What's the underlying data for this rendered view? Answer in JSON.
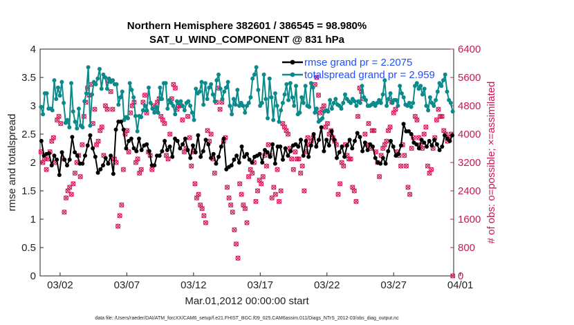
{
  "chart_data": {
    "type": "line",
    "title_line1": "Northern Hemisphere 382601 / 386545 = 98.980%",
    "title_line2": "SAT_U_WIND_COMPONENT @ 831 hPa",
    "xlabel": "Mar.01,2012 00:00:00 start",
    "ylabel_left": "rmse and totalspread",
    "ylabel_right": "# of obs: o=possible; ×=assimilated",
    "footnote": "data file: /Users/raeder/DAI/ATM_forcXX/CAM6_setup/f.e21.FHIST_BGC.f09_025.CAM6assim.011/Diags_NTrS_2012-03/obs_diag_output.nc",
    "ylim_left": [
      0,
      4
    ],
    "ylim_right": [
      0,
      6400
    ],
    "yticks_left": [
      "0",
      "0.5",
      "1",
      "1.5",
      "2",
      "2.5",
      "3",
      "3.5",
      "4"
    ],
    "yticks_right": [
      "0",
      "800",
      "1600",
      "2400",
      "3200",
      "4000",
      "4800",
      "5600",
      "6400"
    ],
    "xticks": [
      "03/02",
      "03/07",
      "03/12",
      "03/17",
      "03/22",
      "03/27",
      "04/01"
    ],
    "xlim_days": [
      0.5,
      31.5
    ],
    "colors": {
      "rmse": "#000000",
      "spread": "#0a8a8a",
      "obs": "#d6175a",
      "legend_text": "#1f4fff",
      "right_axis": "#c8194f"
    },
    "series": [
      {
        "name": "rmse grand pr = 2.2075",
        "values": [
          2.38,
          2.12,
          2.15,
          2.16,
          1.95,
          2.12,
          2.05,
          1.78,
          2.18,
          2.05,
          1.95,
          2.05,
          2.45,
          2.18,
          2.12,
          1.98,
          1.98,
          2.12,
          2.3,
          2.48,
          2.25,
          2.1,
          1.82,
          1.88,
          1.95,
          2.08,
          1.98,
          2.12,
          1.8,
          2.58,
          2.72,
          2.72,
          2.58,
          2.25,
          2.38,
          2.42,
          2.25,
          2.2,
          2.42,
          2.22,
          2.3,
          2.32,
          2.2,
          1.95,
          1.95,
          2.12,
          2.12,
          2.2,
          2.38,
          2.22,
          2.28,
          2.1,
          2.42,
          2.38,
          2.25,
          2.32,
          2.42,
          2.22,
          2.08,
          2.3,
          2.18,
          2.48,
          2.1,
          2.2,
          2.4,
          2.32,
          2.08,
          2.15,
          1.98,
          2.1,
          2.28,
          2.42,
          1.88,
          1.92,
          1.95,
          2.05,
          2.12,
          2.0,
          2.28,
          2.1,
          2.15,
          2.05,
          2.0,
          2.1,
          2.12,
          2.15,
          2.0,
          2.22,
          2.18,
          2.1,
          2.32,
          1.98,
          2.28,
          2.28,
          2.05,
          2.25,
          2.12,
          2.2,
          2.3,
          2.32,
          2.28,
          2.4,
          2.12,
          2.38,
          2.1,
          2.3,
          2.5,
          2.28,
          2.4,
          2.62,
          2.2,
          2.4,
          2.3,
          2.55,
          2.4,
          2.08,
          2.18,
          2.28,
          2.1,
          2.3,
          2.4,
          2.25,
          2.38,
          2.52,
          2.45,
          2.2,
          2.35,
          2.22,
          2.32,
          2.28,
          2.08,
          2.0,
          1.98,
          2.08,
          1.98,
          2.2,
          2.38,
          2.28,
          2.12,
          2.15,
          2.3,
          2.68,
          2.55,
          2.55,
          2.5,
          2.35,
          2.32,
          2.25,
          2.4,
          2.35,
          2.28,
          2.38,
          2.3,
          2.4,
          2.32,
          2.22,
          2.28,
          2.48,
          2.42,
          2.38,
          2.48
        ]
      },
      {
        "name": "totalspread grand pr = 2.959",
        "values": [
          2.98,
          2.85,
          3.22,
          3.22,
          2.95,
          2.95,
          2.92,
          3.45,
          3.12,
          3.32,
          3.18,
          3.42,
          3.05,
          2.7,
          2.75,
          2.62,
          3.4,
          2.9,
          2.72,
          2.6,
          2.95,
          2.65,
          2.62,
          3.08,
          3.22,
          3.68,
          2.65,
          3.2,
          3.42,
          3.38,
          3.48,
          3.65,
          3.3,
          3.55,
          3.5,
          3.3,
          3.48,
          3.42,
          3.45,
          3.38,
          3.38,
          3.02,
          3.15,
          3.25,
          2.75,
          2.8,
          2.78,
          3.4,
          3.28,
          3.15,
          2.82,
          2.55,
          2.82,
          2.8,
          2.92,
          3.0,
          2.92,
          3.32,
          3.05,
          2.95,
          2.88,
          2.98,
          2.88,
          3.32,
          3.12,
          3.4,
          3.4,
          2.95,
          3.1,
          3.05,
          3.0,
          2.85,
          3.08,
          3.05,
          3.08,
          3.0,
          2.92,
          3.05,
          3.08,
          3.0,
          2.88,
          2.75,
          3.3,
          3.22,
          3.25,
          3.42,
          3.02,
          3.4,
          3.12,
          3.32,
          3.38,
          3.2,
          3.08,
          3.45,
          3.55,
          3.3,
          3.12,
          3.25,
          3.32,
          3.42,
          3.0,
          2.85,
          3.12,
          3.02,
          3.28,
          3.0,
          3.05,
          3.0,
          2.88,
          3.0,
          3.05,
          3.15,
          3.48,
          3.55,
          3.68,
          3.28,
          3.0,
          3.05,
          3.55,
          3.12,
          2.78,
          3.48,
          3.15,
          2.75,
          3.22,
          3.0,
          2.72,
          2.92,
          3.05,
          3.2,
          3.38,
          3.1,
          3.4,
          3.15,
          3.0,
          3.35,
          2.85,
          2.88,
          3.15,
          3.05,
          3.35,
          3.0,
          2.98,
          3.4,
          3.32,
          2.88,
          2.95,
          2.72,
          2.75,
          2.78,
          2.9,
          2.92,
          2.9,
          3.1,
          2.95,
          3.05,
          3.12,
          3.02,
          3.0,
          2.95,
          3.05,
          3.2,
          3.12,
          3.08,
          3.05,
          3.12,
          3.08,
          3.0,
          3.08,
          3.05,
          3.35,
          3.15,
          3.1,
          3.0,
          3.0,
          3.02,
          3.05,
          3.0,
          3.05,
          3.1,
          3.05,
          3.2,
          3.45,
          3.0,
          3.12,
          3.22,
          3.05,
          3.1,
          3.1,
          3.0,
          3.35,
          3.22,
          3.15,
          3.02,
          3.0,
          3.05,
          2.98,
          3.05,
          3.35,
          3.4,
          3.3,
          3.35,
          3.2,
          3.3,
          3.0,
          2.92,
          3.15,
          3.05,
          3.0,
          3.1,
          3.25,
          3.4,
          3.35,
          3.45,
          3.55,
          3.25,
          3.1,
          3.05,
          2.9
        ]
      }
    ],
    "obs_counts": {
      "name": "# of obs",
      "possible": [
        3500,
        3200,
        3300,
        3000,
        3300,
        3500,
        3800,
        3900,
        3200,
        4400,
        4500,
        4300,
        3300,
        1800,
        2200,
        2400,
        2500,
        2300,
        2600,
        2900,
        3200,
        3400,
        2800,
        3700,
        4500,
        4900,
        5300,
        5100,
        5400,
        4300,
        4700,
        3700,
        3800,
        4100,
        4200,
        3400,
        4800,
        4700,
        5500,
        5200,
        4700,
        3300,
        3200,
        1400,
        1700,
        2000,
        3000,
        4000,
        4100,
        3500,
        4600,
        4800,
        4900,
        3200,
        3300,
        2900,
        3000,
        4900,
        5100,
        4600,
        3500,
        3400,
        3000,
        4800,
        4700,
        4900,
        5000,
        4500,
        4400,
        4300,
        3400,
        3300,
        4000,
        5000,
        5400,
        5300,
        4700,
        4800,
        4800,
        4400,
        3500,
        3600,
        4500,
        3900,
        3100,
        3500,
        2600,
        2200,
        2300,
        2000,
        1900,
        1700,
        1500,
        4100,
        3800,
        4000,
        3300,
        2900,
        4900,
        5300,
        4700,
        4900,
        3800,
        3900,
        2500,
        2200,
        2000,
        1800,
        1300,
        900,
        500,
        2600,
        2300,
        2000,
        1900,
        1500,
        2800,
        3000,
        2900,
        3200,
        2100,
        2400,
        2700,
        2600,
        2800,
        3400,
        3100,
        3700,
        3400,
        2200,
        2500,
        2300,
        3000,
        2100,
        2400,
        4300,
        4200,
        4100,
        4000,
        3600,
        3300,
        3000,
        3500,
        3300,
        3300,
        2900,
        3100,
        2400,
        3500,
        3900,
        3700,
        3800,
        3900,
        5400,
        5600,
        5100,
        4600,
        4700,
        4800,
        4200,
        4300,
        4000,
        4100,
        3900,
        3800,
        3700,
        2300,
        2600,
        3200,
        3100,
        3700,
        3400,
        3300,
        3300,
        2500,
        2400,
        2100,
        4500,
        5300,
        5200,
        5000,
        4000,
        3700,
        4300,
        3600,
        4100,
        4100,
        3500,
        3200,
        2800,
        3400,
        3600,
        3700,
        3800,
        4100,
        4200,
        4900,
        4600,
        4700,
        3500,
        3400,
        3100,
        3700,
        3400,
        3100,
        2500,
        2300,
        3600,
        3900,
        4500,
        4400,
        3900,
        3700,
        3600,
        4000,
        4200,
        3100,
        2900,
        3000,
        3600,
        3900,
        4400,
        4700,
        4500,
        4500,
        4100,
        4000,
        3800,
        3900,
        4000,
        0
      ]
    },
    "legend": {
      "rmse": "rmse grand pr = 2.2075",
      "spread": "totalspread grand pr = 2.959"
    }
  }
}
